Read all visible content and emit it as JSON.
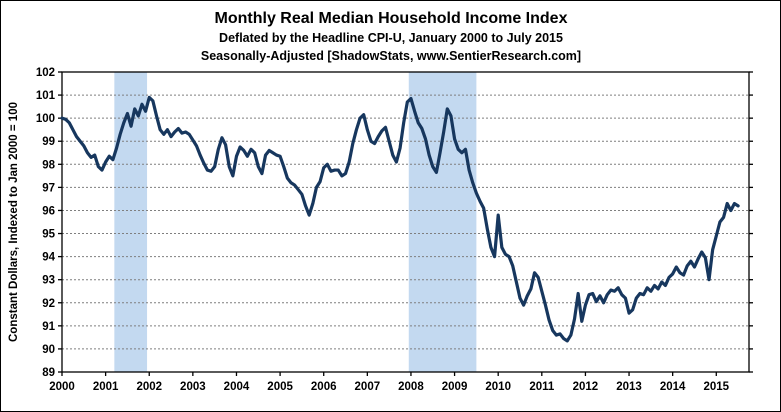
{
  "title": "Monthly Real Median Household Income Index",
  "subtitle1": "Deflated by the Headline CPI-U, January 2000 to July 2015",
  "subtitle2": "Seasonally-Adjusted [ShadowStats, www.SentierResearch.com]",
  "colors": {
    "line": "#17375E",
    "recession_band": "#C3D9F0",
    "gridline": "#7F7F7F",
    "axis": "#000000",
    "background": "#FFFFFF"
  },
  "chart_data": {
    "type": "line",
    "title": "Monthly Real Median Household Income Index",
    "xlabel": "",
    "ylabel": "Constant Dollars, Indexed to Jan 2000 = 100",
    "xlim": [
      2000,
      2015.75
    ],
    "ylim": [
      89,
      102
    ],
    "grid": true,
    "legend_position": "none",
    "y_ticks": [
      89,
      90,
      91,
      92,
      93,
      94,
      95,
      96,
      97,
      98,
      99,
      100,
      101,
      102
    ],
    "x_tick_labels": [
      "2000",
      "2001",
      "2002",
      "2003",
      "2004",
      "2005",
      "2006",
      "2007",
      "2008",
      "2009",
      "2010",
      "2011",
      "2012",
      "2013",
      "2014",
      "2015"
    ],
    "recession_bands": [
      {
        "from": 2001.2,
        "to": 2001.95
      },
      {
        "from": 2007.95,
        "to": 2009.5
      }
    ],
    "series": [
      {
        "name": "Real Median Household Income Index (Jan 2000 = 100)",
        "start_month": "2000-01",
        "end_month": "2015-07",
        "monthly_values_by_year": {
          "2000": [
            100.0,
            99.95,
            99.8,
            99.5,
            99.2,
            99.0,
            98.8,
            98.5,
            98.3,
            98.4,
            97.9,
            97.75
          ],
          "2001": [
            98.1,
            98.35,
            98.2,
            98.7,
            99.3,
            99.8,
            100.2,
            99.65,
            100.4,
            100.1,
            100.6,
            100.3
          ],
          "2002": [
            100.9,
            100.75,
            100.1,
            99.5,
            99.3,
            99.5,
            99.2,
            99.4,
            99.55,
            99.35,
            99.4,
            99.3
          ],
          "2003": [
            99.05,
            98.8,
            98.4,
            98.05,
            97.75,
            97.7,
            97.9,
            98.65,
            99.15,
            98.85,
            97.9,
            97.5
          ],
          "2004": [
            98.35,
            98.75,
            98.6,
            98.35,
            98.65,
            98.5,
            97.9,
            97.6,
            98.4,
            98.6,
            98.5,
            98.4
          ],
          "2005": [
            98.35,
            97.9,
            97.4,
            97.2,
            97.1,
            96.9,
            96.7,
            96.2,
            95.8,
            96.3,
            97.0,
            97.25
          ],
          "2006": [
            97.85,
            98.0,
            97.7,
            97.75,
            97.75,
            97.5,
            97.6,
            98.1,
            98.9,
            99.5,
            100.0,
            100.15
          ],
          "2007": [
            99.5,
            99.0,
            98.9,
            99.2,
            99.45,
            99.6,
            99.0,
            98.4,
            98.1,
            98.7,
            99.8,
            100.7
          ],
          "2008": [
            100.85,
            100.3,
            99.8,
            99.55,
            99.1,
            98.4,
            97.9,
            97.65,
            98.5,
            99.4,
            100.4,
            100.1
          ],
          "2009": [
            99.1,
            98.65,
            98.5,
            98.65,
            97.75,
            97.2,
            96.75,
            96.4,
            96.1,
            95.2,
            94.4,
            94.0
          ],
          "2010": [
            95.8,
            94.4,
            94.1,
            94.0,
            93.6,
            92.9,
            92.2,
            91.9,
            92.3,
            92.6,
            93.3,
            93.1
          ],
          "2011": [
            92.5,
            91.9,
            91.25,
            90.8,
            90.6,
            90.65,
            90.45,
            90.35,
            90.6,
            91.3,
            92.4,
            91.2
          ],
          "2012": [
            91.9,
            92.35,
            92.4,
            92.05,
            92.3,
            92.0,
            92.35,
            92.55,
            92.5,
            92.65,
            92.35,
            92.2
          ],
          "2013": [
            91.55,
            91.7,
            92.2,
            92.4,
            92.35,
            92.65,
            92.5,
            92.75,
            92.6,
            92.9,
            92.75,
            93.1
          ],
          "2014": [
            93.25,
            93.55,
            93.3,
            93.2,
            93.6,
            93.8,
            93.55,
            93.9,
            94.2,
            93.95,
            93.0,
            94.3
          ],
          "2015": [
            94.9,
            95.5,
            95.7,
            96.3,
            96.0,
            96.3,
            96.2
          ]
        }
      }
    ]
  }
}
